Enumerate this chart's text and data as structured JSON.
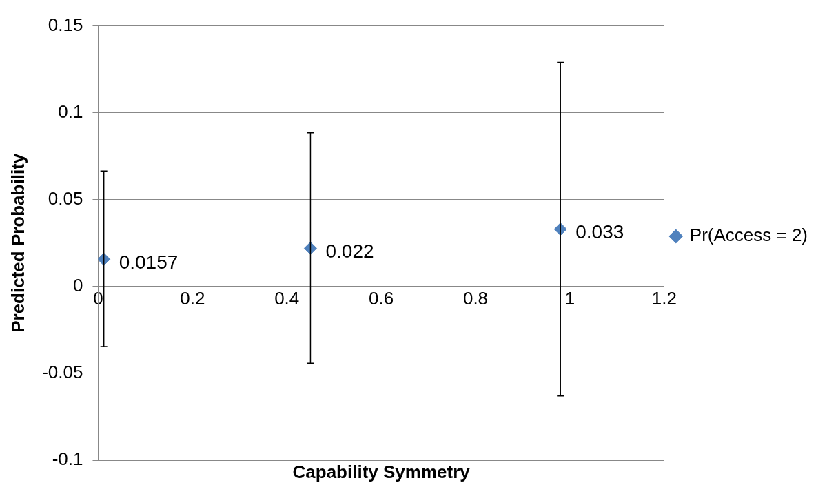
{
  "chart_data": {
    "type": "scatter",
    "xlabel": "Capability Symmetry",
    "ylabel": "Predicted Probability",
    "x": [
      0.012,
      0.45,
      0.98
    ],
    "series": [
      {
        "name": "Pr(Access = 2)",
        "color": "#4f81bd",
        "values": [
          0.0157,
          0.022,
          0.033
        ],
        "errors": [
          [
            -0.0346,
            0.0665
          ],
          [
            -0.0442,
            0.0885
          ],
          [
            -0.063,
            0.129
          ]
        ]
      }
    ],
    "xlim": [
      0,
      1.2
    ],
    "xticks": [
      0,
      0.2,
      0.4,
      0.6,
      0.8,
      1,
      1.2
    ],
    "ylim": [
      -0.1,
      0.15
    ],
    "yticks": [
      -0.1,
      -0.05,
      0,
      0.05,
      0.1,
      0.15
    ],
    "grid": "y",
    "legend": "right",
    "marker": "diamond",
    "data_labels": true
  }
}
